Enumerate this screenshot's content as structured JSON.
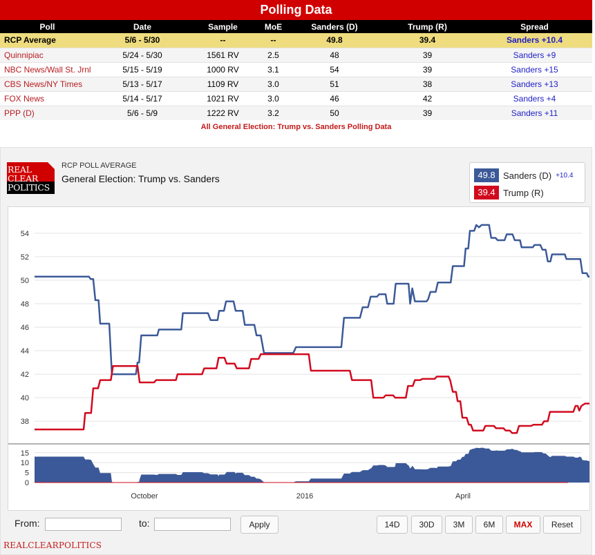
{
  "header": {
    "title": "Polling Data"
  },
  "table": {
    "columns": [
      "Poll",
      "Date",
      "Sample",
      "MoE",
      "Sanders (D)",
      "Trump (R)",
      "Spread"
    ],
    "rows": [
      [
        "RCP Average",
        "5/6 - 5/30",
        "--",
        "--",
        "49.8",
        "39.4",
        "Sanders +10.4"
      ],
      [
        "Quinnipiac",
        "5/24 - 5/30",
        "1561 RV",
        "2.5",
        "48",
        "39",
        "Sanders +9"
      ],
      [
        "NBC News/Wall St. Jrnl",
        "5/15 - 5/19",
        "1000 RV",
        "3.1",
        "54",
        "39",
        "Sanders +15"
      ],
      [
        "CBS News/NY Times",
        "5/13 - 5/17",
        "1109 RV",
        "3.0",
        "51",
        "38",
        "Sanders +13"
      ],
      [
        "FOX News",
        "5/14 - 5/17",
        "1021 RV",
        "3.0",
        "46",
        "42",
        "Sanders +4"
      ],
      [
        "PPP (D)",
        "5/6 - 5/9",
        "1222 RV",
        "3.2",
        "50",
        "39",
        "Sanders +11"
      ]
    ],
    "footer_link": "All General Election: Trump vs. Sanders Polling Data"
  },
  "chart_panel": {
    "logo": {
      "line1": "REAL",
      "line2": "CLEAR",
      "line3": "POLITICS"
    },
    "label": "RCP POLL AVERAGE",
    "title": "General Election: Trump vs. Sanders",
    "legend": [
      {
        "value": "49.8",
        "name": "Sanders (D)",
        "spread": "+10.4",
        "color": "#3b5998"
      },
      {
        "value": "39.4",
        "name": "Trump (R)",
        "spread": "",
        "color": "#d10a1e"
      }
    ]
  },
  "controls": {
    "from_label": "From:",
    "to_label": "to:",
    "apply_label": "Apply",
    "ranges": [
      "14D",
      "30D",
      "3M",
      "6M",
      "MAX"
    ],
    "active_range": "MAX",
    "reset_label": "Reset"
  },
  "footer": {
    "brand": "REALCLEARPOLITICS"
  },
  "chart_data": {
    "type": "line",
    "x_ticks": [
      "October",
      "2016",
      "April"
    ],
    "y_ticks": [
      38,
      40,
      42,
      44,
      46,
      48,
      50,
      52,
      54
    ],
    "ylim": [
      36.6,
      55.4
    ],
    "x_span": [
      0,
      100
    ],
    "grid": true,
    "series": [
      {
        "name": "Sanders (D)",
        "color": "#3b5998",
        "points": [
          [
            0,
            50.3
          ],
          [
            10.2,
            50.3
          ],
          [
            10.5,
            50.1
          ],
          [
            11,
            50.1
          ],
          [
            11.4,
            48.3
          ],
          [
            12,
            48.3
          ],
          [
            12.3,
            46.3
          ],
          [
            14,
            46.3
          ],
          [
            14.5,
            42
          ],
          [
            19,
            42
          ],
          [
            19.3,
            43
          ],
          [
            19.6,
            43
          ],
          [
            20,
            45.3
          ],
          [
            23,
            45.3
          ],
          [
            23.3,
            45.8
          ],
          [
            27.5,
            45.8
          ],
          [
            27.8,
            47.2
          ],
          [
            32.5,
            47.2
          ],
          [
            33,
            46.6
          ],
          [
            34.3,
            46.6
          ],
          [
            34.6,
            47.4
          ],
          [
            35.5,
            47.4
          ],
          [
            35.9,
            48.2
          ],
          [
            37.3,
            48.2
          ],
          [
            37.7,
            47.4
          ],
          [
            39,
            47.4
          ],
          [
            39.4,
            46.2
          ],
          [
            41.2,
            46.2
          ],
          [
            41.6,
            45.3
          ],
          [
            42.4,
            45.3
          ],
          [
            43,
            43.8
          ],
          [
            48.5,
            43.8
          ],
          [
            49,
            44.3
          ],
          [
            57.5,
            44.3
          ],
          [
            58,
            46.8
          ],
          [
            61,
            46.8
          ],
          [
            61.5,
            47.7
          ],
          [
            62.5,
            47.7
          ],
          [
            63,
            48.6
          ],
          [
            64.2,
            48.6
          ],
          [
            64.6,
            48.8
          ],
          [
            65.8,
            48.8
          ],
          [
            66.1,
            48
          ],
          [
            67.3,
            48
          ],
          [
            67.7,
            49.7
          ],
          [
            70.1,
            49.7
          ],
          [
            70.4,
            48
          ],
          [
            70.8,
            49.3
          ],
          [
            71.3,
            48.2
          ],
          [
            73.5,
            48.2
          ],
          [
            73.8,
            48.4
          ],
          [
            74.2,
            49
          ],
          [
            75.2,
            49
          ],
          [
            75.6,
            49.8
          ],
          [
            78,
            49.8
          ],
          [
            78.4,
            51.2
          ],
          [
            80.5,
            51.2
          ],
          [
            80.8,
            52.7
          ],
          [
            81.3,
            52.7
          ],
          [
            81.6,
            54.2
          ],
          [
            82.4,
            54.2
          ],
          [
            82.8,
            54.7
          ],
          [
            83.3,
            54.5
          ],
          [
            83.8,
            54.7
          ],
          [
            85.2,
            54.7
          ],
          [
            85.6,
            53.6
          ],
          [
            86.4,
            53.6
          ],
          [
            86.8,
            53.4
          ],
          [
            88.1,
            53.4
          ],
          [
            88.5,
            53.9
          ],
          [
            89.6,
            53.9
          ],
          [
            90,
            53.4
          ],
          [
            91,
            53.4
          ],
          [
            91.3,
            52.8
          ],
          [
            93.4,
            52.8
          ],
          [
            93.7,
            53
          ],
          [
            94.8,
            53
          ],
          [
            95.2,
            52.6
          ],
          [
            95.8,
            52.6
          ],
          [
            96.2,
            51.6
          ],
          [
            96.7,
            51.6
          ],
          [
            97,
            52.2
          ],
          [
            99.4,
            52.2
          ],
          [
            99.7,
            51.8
          ],
          [
            102.3,
            51.8
          ],
          [
            102.7,
            50.6
          ],
          [
            103.5,
            50.6
          ],
          [
            103.8,
            50.3
          ],
          [
            106.7,
            50.3
          ],
          [
            107,
            49.8
          ]
        ]
      },
      {
        "name": "Trump (R)",
        "color": "#d10a1e",
        "points": [
          [
            0,
            37.3
          ],
          [
            9.2,
            37.3
          ],
          [
            9.5,
            38.7
          ],
          [
            10.6,
            38.7
          ],
          [
            11,
            40.8
          ],
          [
            11.9,
            40.8
          ],
          [
            12.3,
            41.5
          ],
          [
            14.3,
            41.5
          ],
          [
            14.7,
            42.7
          ],
          [
            19.3,
            42.7
          ],
          [
            19.7,
            41.3
          ],
          [
            22.4,
            41.3
          ],
          [
            22.8,
            41.5
          ],
          [
            26.5,
            41.5
          ],
          [
            26.8,
            42
          ],
          [
            31.4,
            42
          ],
          [
            31.8,
            42.5
          ],
          [
            34.1,
            42.5
          ],
          [
            34.5,
            43.4
          ],
          [
            35.6,
            43.4
          ],
          [
            36,
            42.9
          ],
          [
            37.5,
            42.9
          ],
          [
            37.9,
            42.5
          ],
          [
            40.2,
            42.5
          ],
          [
            40.6,
            43.3
          ],
          [
            42,
            43.3
          ],
          [
            42.4,
            43.7
          ],
          [
            51.4,
            43.7
          ],
          [
            51.8,
            42.3
          ],
          [
            59.1,
            42.3
          ],
          [
            59.5,
            41.5
          ],
          [
            63.1,
            41.5
          ],
          [
            63.5,
            40
          ],
          [
            65.4,
            40
          ],
          [
            65.8,
            40.2
          ],
          [
            67.2,
            40.2
          ],
          [
            67.6,
            40
          ],
          [
            69.6,
            40
          ],
          [
            70,
            41
          ],
          [
            70.9,
            41
          ],
          [
            71.3,
            41.5
          ],
          [
            72.3,
            41.5
          ],
          [
            72.7,
            41.6
          ],
          [
            75,
            41.6
          ],
          [
            75.4,
            41.8
          ],
          [
            77.6,
            41.8
          ],
          [
            77.9,
            41.5
          ],
          [
            78.4,
            40.5
          ],
          [
            79,
            40.5
          ],
          [
            79.3,
            39.7
          ],
          [
            79.8,
            39.7
          ],
          [
            80.2,
            38.3
          ],
          [
            81,
            38.3
          ],
          [
            81.4,
            37.7
          ],
          [
            81.8,
            37.7
          ],
          [
            82.2,
            37.2
          ],
          [
            84.1,
            37.2
          ],
          [
            84.5,
            37.6
          ],
          [
            86.1,
            37.6
          ],
          [
            86.5,
            37.4
          ],
          [
            87.9,
            37.4
          ],
          [
            88.3,
            37.2
          ],
          [
            89.1,
            37.2
          ],
          [
            89.5,
            37
          ],
          [
            90.4,
            37
          ],
          [
            90.8,
            37.6
          ],
          [
            93.1,
            37.6
          ],
          [
            93.5,
            37.7
          ],
          [
            95.1,
            37.7
          ],
          [
            95.5,
            38
          ],
          [
            96.2,
            38
          ],
          [
            96.6,
            38.8
          ],
          [
            101,
            38.8
          ],
          [
            101.4,
            39.3
          ],
          [
            101.8,
            39.3
          ],
          [
            102.1,
            38.9
          ],
          [
            102.5,
            39.3
          ],
          [
            103.2,
            39.5
          ],
          [
            106.3,
            39.5
          ],
          [
            107,
            39.4
          ]
        ]
      }
    ],
    "spread_panel": {
      "type": "area",
      "y_ticks": [
        0,
        5,
        10,
        15
      ],
      "ylim": [
        0,
        17
      ],
      "color": "#3b5998"
    }
  }
}
